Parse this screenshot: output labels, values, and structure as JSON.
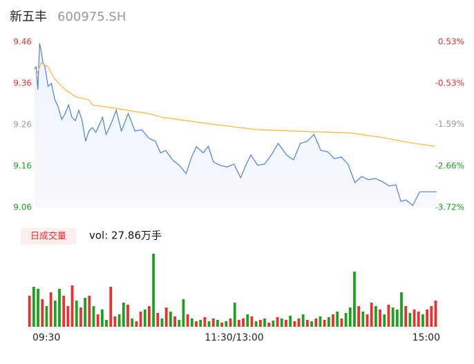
{
  "header": {
    "name": "新五丰",
    "code": "600975.SH"
  },
  "volume_tab": "日成交量",
  "chart_data": [
    {
      "type": "line",
      "ylim": [
        9.06,
        9.46
      ],
      "yticks": [
        9.46,
        9.36,
        9.26,
        9.16,
        9.06
      ],
      "ytick_colors": [
        "#e8302f",
        "#e8302f",
        "#999999",
        "#1aa31a",
        "#1aa31a"
      ],
      "y2lim": [
        -3.72,
        0.53
      ],
      "y2ticks": [
        {
          "value": 0.53,
          "label": "0.53%"
        },
        {
          "value": -0.53,
          "label": "-0.53%"
        },
        {
          "value": -1.59,
          "label": "-1.59%"
        },
        {
          "value": -2.66,
          "label": "-2.66%"
        },
        {
          "value": -3.72,
          "label": "-3.72%"
        }
      ],
      "y2tick_colors": [
        "#e8302f",
        "#e8302f",
        "#999999",
        "#1aa31a",
        "#1aa31a"
      ],
      "xlim": [
        0,
        240
      ],
      "xticks": [
        {
          "value": 0,
          "label": "09:30"
        },
        {
          "value": 120,
          "label": "11:30/13:00"
        },
        {
          "value": 240,
          "label": "15:00"
        }
      ],
      "series": [
        {
          "color": "#4a7fe0",
          "x": [
            4,
            5,
            6,
            7,
            8,
            9,
            10,
            12,
            14,
            16,
            18,
            20,
            22,
            24,
            26,
            28,
            30,
            32,
            34,
            36,
            38,
            40,
            44,
            46,
            48,
            52,
            55,
            59,
            63,
            67,
            71,
            75,
            78,
            81,
            85,
            89,
            93,
            96,
            99,
            103,
            106,
            109,
            113,
            117,
            121,
            125,
            128,
            131,
            135,
            139,
            143,
            147,
            152,
            156,
            160,
            164,
            168,
            172,
            176,
            180,
            184,
            188,
            192,
            196,
            200,
            204,
            208,
            212,
            216,
            219,
            222,
            226,
            230,
            240
          ],
          "values": [
            9.395,
            9.4,
            9.345,
            9.457,
            9.437,
            9.41,
            9.403,
            9.353,
            9.36,
            9.32,
            9.303,
            9.273,
            9.287,
            9.308,
            9.278,
            9.27,
            9.295,
            9.27,
            9.22,
            9.245,
            9.253,
            9.242,
            9.278,
            9.237,
            9.253,
            9.295,
            9.245,
            9.287,
            9.245,
            9.248,
            9.228,
            9.22,
            9.192,
            9.198,
            9.175,
            9.162,
            9.142,
            9.18,
            9.207,
            9.192,
            9.208,
            9.17,
            9.162,
            9.158,
            9.165,
            9.132,
            9.162,
            9.187,
            9.162,
            9.165,
            9.187,
            9.215,
            9.187,
            9.175,
            9.215,
            9.22,
            9.237,
            9.198,
            9.195,
            9.178,
            9.182,
            9.165,
            9.12,
            9.135,
            9.127,
            9.13,
            9.123,
            9.112,
            9.115,
            9.075,
            9.078,
            9.065,
            9.098,
            9.098
          ]
        },
        {
          "color": "#f5b731",
          "x": [
            5,
            8,
            12,
            16,
            22,
            28,
            36,
            38,
            51,
            71,
            79,
            93,
            115,
            135,
            190,
            210,
            222,
            239
          ],
          "values": [
            9.378,
            9.41,
            9.4,
            9.37,
            9.345,
            9.328,
            9.32,
            9.308,
            9.3,
            9.287,
            9.278,
            9.27,
            9.258,
            9.248,
            9.24,
            9.228,
            9.218,
            9.208
          ]
        }
      ]
    },
    {
      "type": "bar",
      "title": "vol: 27.86万手",
      "values": [
        45,
        58,
        55,
        40,
        30,
        50,
        38,
        55,
        45,
        30,
        60,
        38,
        28,
        42,
        45,
        30,
        18,
        25,
        10,
        58,
        15,
        18,
        35,
        32,
        12,
        8,
        22,
        25,
        30,
        106,
        20,
        12,
        28,
        22,
        15,
        10,
        40,
        18,
        12,
        8,
        10,
        14,
        8,
        12,
        10,
        6,
        8,
        12,
        35,
        10,
        12,
        18,
        15,
        8,
        10,
        12,
        6,
        9,
        14,
        12,
        10,
        16,
        8,
        12,
        18,
        10,
        8,
        12,
        15,
        10,
        14,
        18,
        22,
        12,
        20,
        28,
        80,
        30,
        22,
        18,
        35,
        30,
        25,
        18,
        32,
        28,
        25,
        50,
        30,
        20,
        25,
        22,
        18,
        25,
        30,
        38
      ],
      "colors": [
        "#e8302f",
        "#1aa31a",
        "#1aa31a",
        "#e8302f",
        "#1aa31a",
        "#e8302f",
        "#1aa31a",
        "#1aa31a",
        "#e8302f",
        "#e8302f",
        "#e8302f",
        "#1aa31a",
        "#e8302f",
        "#1aa31a",
        "#e8302f",
        "#1aa31a",
        "#e8302f",
        "#1aa31a",
        "#1aa31a",
        "#e8302f",
        "#e8302f",
        "#1aa31a",
        "#1aa31a",
        "#e8302f",
        "#1aa31a",
        "#e8302f",
        "#e8302f",
        "#1aa31a",
        "#e8302f",
        "#1aa31a",
        "#e8302f",
        "#1aa31a",
        "#e8302f",
        "#1aa31a",
        "#e8302f",
        "#1aa31a",
        "#1aa31a",
        "#e8302f",
        "#1aa31a",
        "#e8302f",
        "#1aa31a",
        "#e8302f",
        "#1aa31a",
        "#e8302f",
        "#1aa31a",
        "#e8302f",
        "#1aa31a",
        "#e8302f",
        "#1aa31a",
        "#e8302f",
        "#e8302f",
        "#1aa31a",
        "#e8302f",
        "#1aa31a",
        "#e8302f",
        "#1aa31a",
        "#e8302f",
        "#1aa31a",
        "#e8302f",
        "#1aa31a",
        "#e8302f",
        "#1aa31a",
        "#e8302f",
        "#e8302f",
        "#1aa31a",
        "#e8302f",
        "#1aa31a",
        "#e8302f",
        "#1aa31a",
        "#e8302f",
        "#1aa31a",
        "#e8302f",
        "#1aa31a",
        "#e8302f",
        "#1aa31a",
        "#1aa31a",
        "#1aa31a",
        "#e8302f",
        "#1aa31a",
        "#e8302f",
        "#e8302f",
        "#1aa31a",
        "#e8302f",
        "#1aa31a",
        "#e8302f",
        "#1aa31a",
        "#1aa31a",
        "#1aa31a",
        "#e8302f",
        "#1aa31a",
        "#e8302f",
        "#e8302f",
        "#1aa31a",
        "#e8302f",
        "#e8302f",
        "#e8302f"
      ]
    }
  ]
}
